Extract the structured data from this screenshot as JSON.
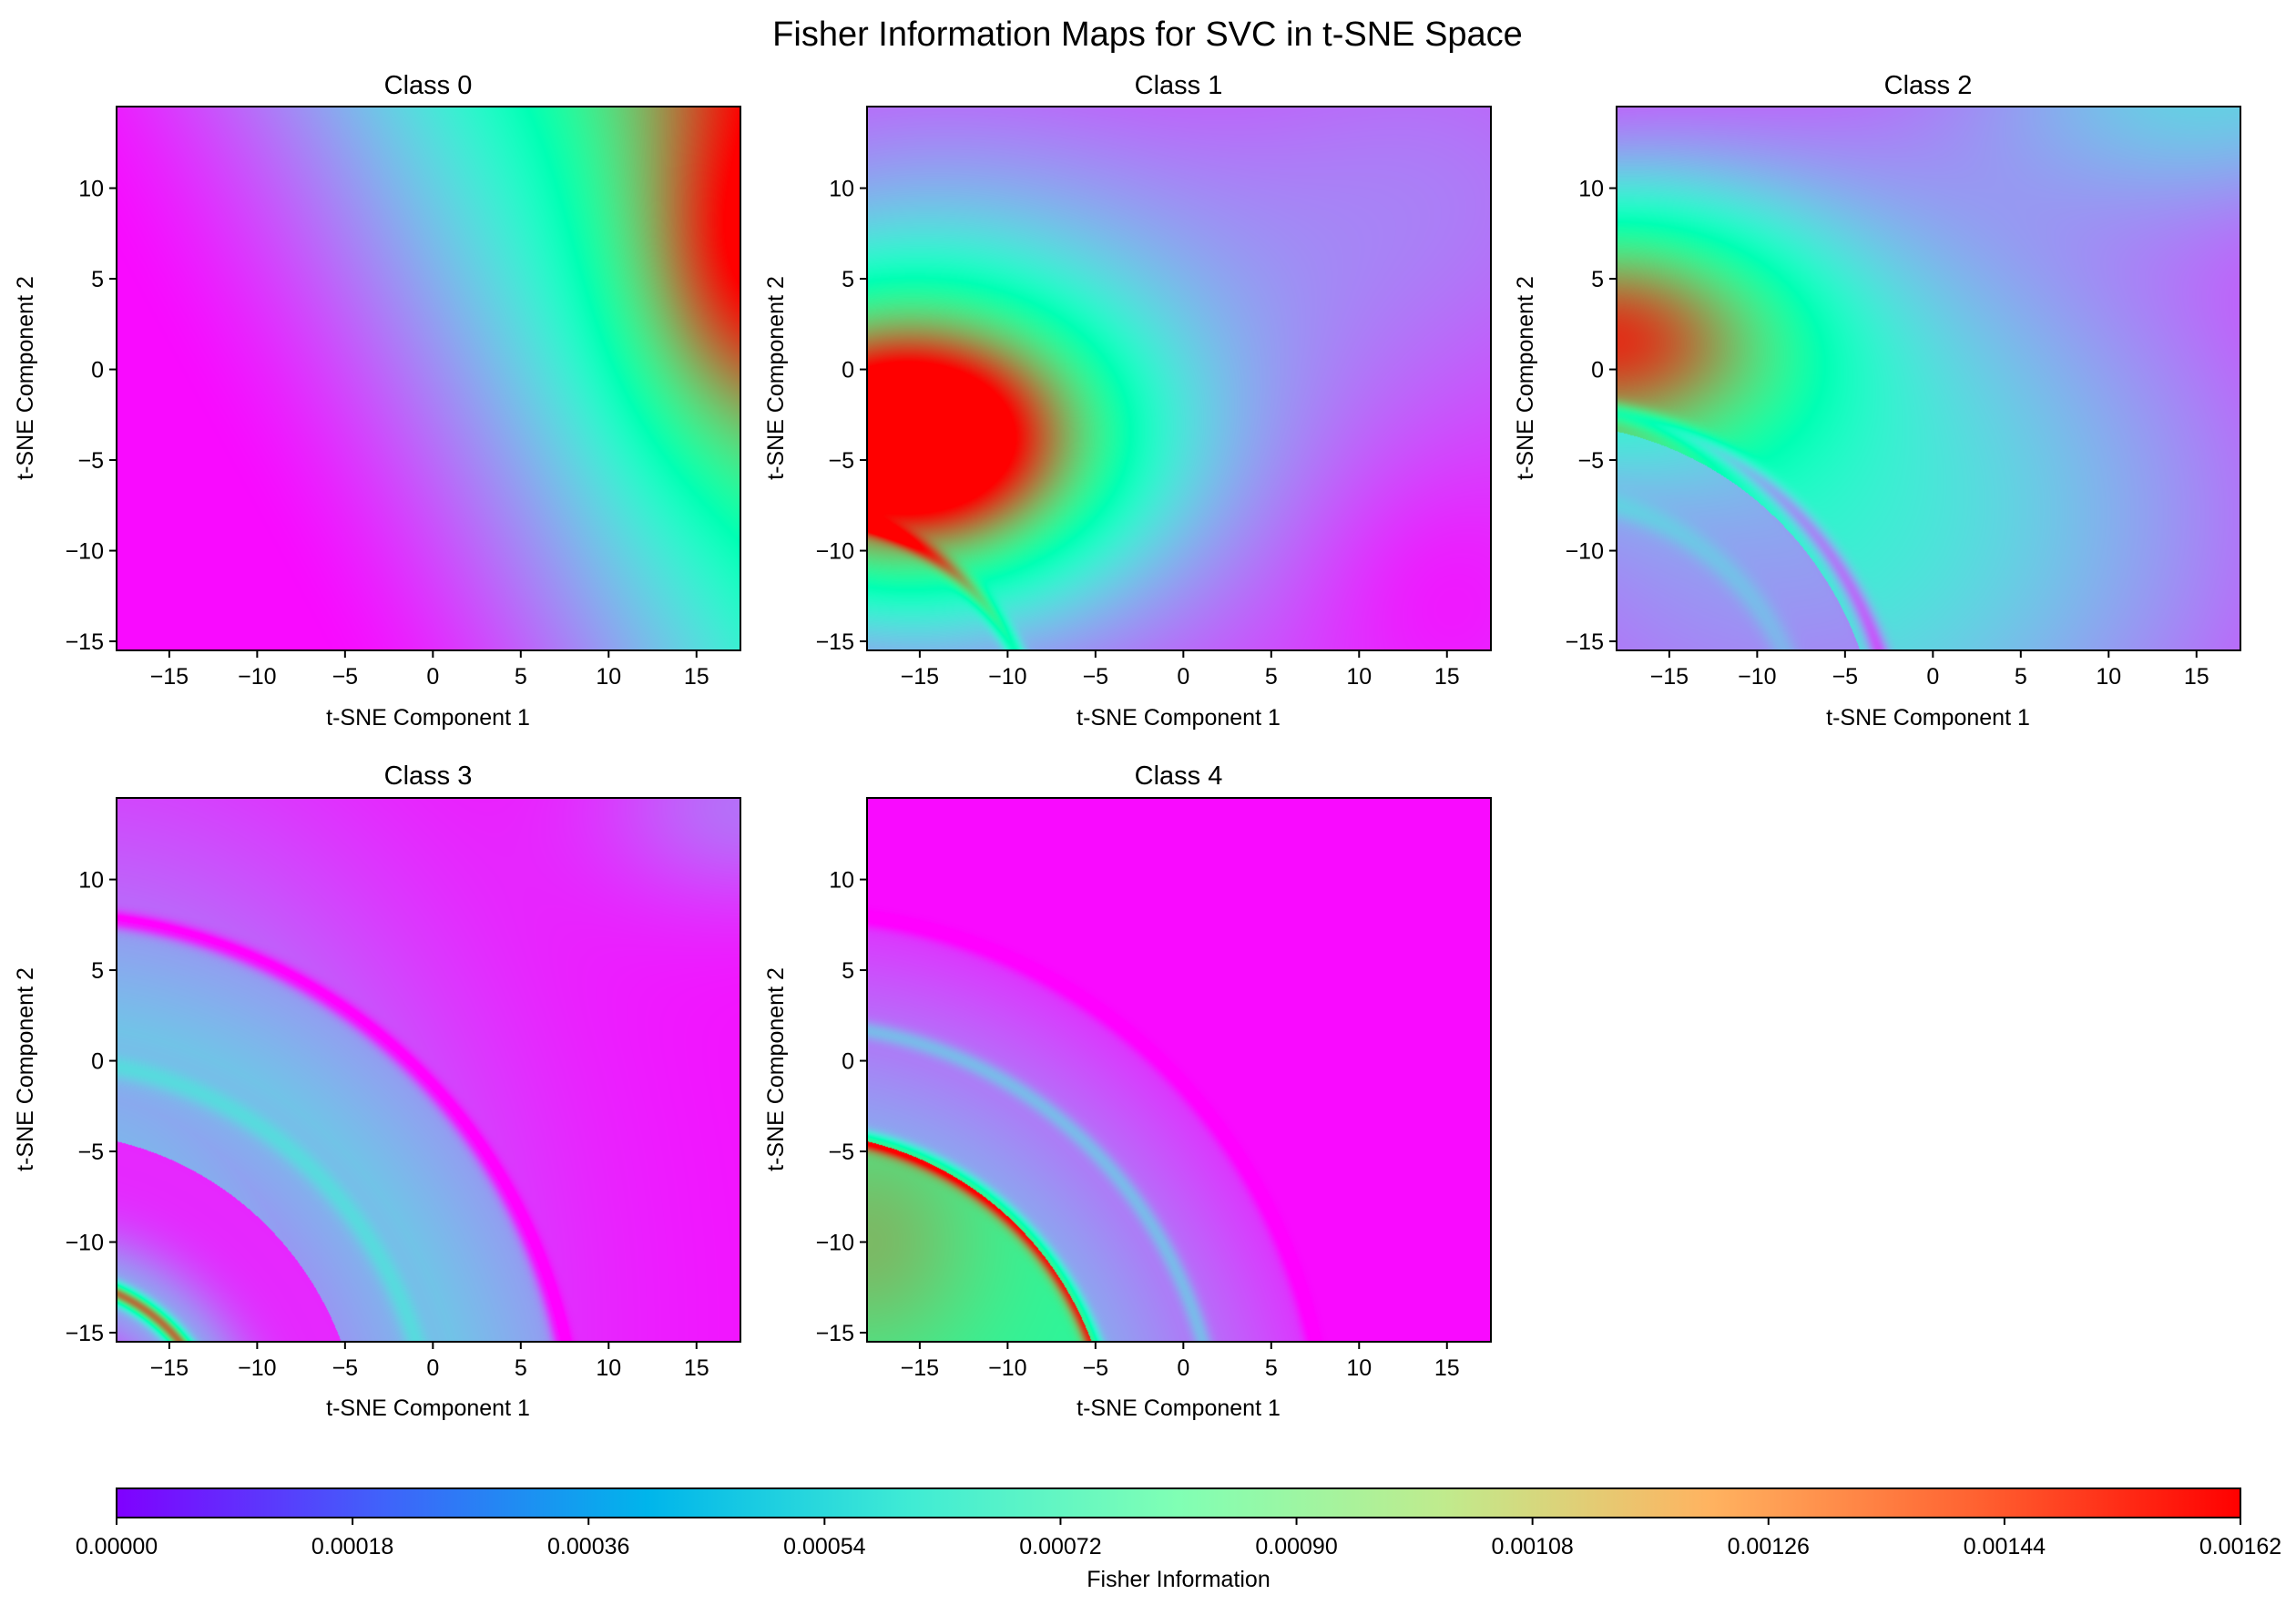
{
  "figure": {
    "title": "Fisher Information Maps for SVC in t-SNE Space",
    "colormap": "rainbow",
    "background": "#ffffff"
  },
  "chart_data": [
    {
      "type": "heatmap",
      "title": "Class 0",
      "xlabel": "t-SNE Component 1",
      "ylabel": "t-SNE Component 2",
      "xlim": [
        -18,
        17.5
      ],
      "ylim": [
        -15.5,
        14.5
      ],
      "xticks": [
        -15,
        -10,
        -5,
        0,
        5,
        10,
        15
      ],
      "yticks": [
        -15,
        -10,
        -5,
        0,
        5,
        10
      ],
      "features": [
        {
          "kind": "peak",
          "x": 17.5,
          "y": 5,
          "value": 0.00158
        },
        {
          "kind": "gradient",
          "description_axis": "value rises from lower-left (~0.00002) to upper-right (~0.0015)"
        }
      ]
    },
    {
      "type": "heatmap",
      "title": "Class 1",
      "xlabel": "t-SNE Component 1",
      "ylabel": "t-SNE Component 2",
      "xlim": [
        -18,
        17.5
      ],
      "ylim": [
        -15.5,
        14.5
      ],
      "xticks": [
        -15,
        -10,
        -5,
        0,
        5,
        10,
        15
      ],
      "yticks": [
        -15,
        -10,
        -5,
        0,
        5,
        10
      ],
      "features": [
        {
          "kind": "peak",
          "x": -16,
          "y": -4,
          "value": 0.00155
        },
        {
          "kind": "ring",
          "cx": -22,
          "cy": -22,
          "r": 14,
          "value": 0.0007
        }
      ]
    },
    {
      "type": "heatmap",
      "title": "Class 2",
      "xlabel": "t-SNE Component 1",
      "ylabel": "t-SNE Component 2",
      "xlim": [
        -18,
        17.5
      ],
      "ylim": [
        -15.5,
        14.5
      ],
      "xticks": [
        -15,
        -10,
        -5,
        0,
        5,
        10,
        15
      ],
      "yticks": [
        -15,
        -10,
        -5,
        0,
        5,
        10
      ],
      "features": [
        {
          "kind": "peak",
          "x": -18,
          "y": 2,
          "value": 0.0015
        },
        {
          "kind": "ring",
          "cx": -22,
          "cy": -22,
          "r": 20,
          "value": 0.0003
        },
        {
          "kind": "ring",
          "cx": -22,
          "cy": -22,
          "r": 15,
          "value": 0.0004
        }
      ]
    },
    {
      "type": "heatmap",
      "title": "Class 3",
      "xlabel": "t-SNE Component 1",
      "ylabel": "t-SNE Component 2",
      "xlim": [
        -18,
        17.5
      ],
      "ylim": [
        -15.5,
        14.5
      ],
      "xticks": [
        -15,
        -10,
        -5,
        0,
        5,
        10,
        15
      ],
      "yticks": [
        -15,
        -10,
        -5,
        0,
        5,
        10
      ],
      "features": [
        {
          "kind": "ring",
          "cx": -22,
          "cy": -22,
          "r": 30,
          "value": 0.0001
        },
        {
          "kind": "ring",
          "cx": -22,
          "cy": -22,
          "r": 22,
          "value": 0.0005
        },
        {
          "kind": "ring",
          "cx": -22,
          "cy": -22,
          "r": 10,
          "value": 0.0012
        }
      ]
    },
    {
      "type": "heatmap",
      "title": "Class 4",
      "xlabel": "t-SNE Component 1",
      "ylabel": "t-SNE Component 2",
      "xlim": [
        -18,
        17.5
      ],
      "ylim": [
        -15.5,
        14.5
      ],
      "xticks": [
        -15,
        -10,
        -5,
        0,
        5,
        10,
        15
      ],
      "yticks": [
        -15,
        -10,
        -5,
        0,
        5,
        10
      ],
      "features": [
        {
          "kind": "peak",
          "x": -18,
          "y": -10,
          "value": 0.00118
        },
        {
          "kind": "ring",
          "cx": -22,
          "cy": -22,
          "r": 18,
          "value": 0.0016
        },
        {
          "kind": "ring",
          "cx": -22,
          "cy": -22,
          "r": 24,
          "value": 0.00045
        },
        {
          "kind": "ring",
          "cx": -22,
          "cy": -22,
          "r": 30,
          "value": 0.0001
        }
      ]
    }
  ],
  "colorbar": {
    "label": "Fisher Information",
    "min": 0,
    "max": 0.00162,
    "ticks": [
      "0.00000",
      "0.00018",
      "0.00036",
      "0.00054",
      "0.00072",
      "0.00090",
      "0.00108",
      "0.00126",
      "0.00144",
      "0.00162"
    ],
    "stops": [
      "#8000ff",
      "#4062fa",
      "#00b5eb",
      "#40ecd4",
      "#80ffb4",
      "#c0eb8d",
      "#ffb360",
      "#ff6231",
      "#ff0000"
    ]
  }
}
